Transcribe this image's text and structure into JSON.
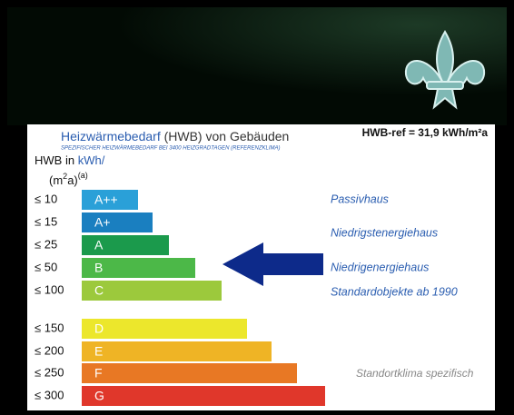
{
  "header": {
    "title_main": "Heizwärmebedarf",
    "title_rest": "(HWB) von Gebäuden",
    "subtitle": "SPEZIFISCHER HEIZWÄRMEBEDARF BEI 3400 HEIZGRADTAGEN (REFERENZKLIMA)",
    "reference": "HWB-ref = 31,9 kWh/m²a"
  },
  "unit": {
    "prefix": "HWB in",
    "unit": "kWh/",
    "open": "(m",
    "power": "2",
    "close": "a)",
    "note": "(a)"
  },
  "classes": [
    {
      "limit": "≤ 10",
      "label": "A++",
      "color": "#2aa0d8"
    },
    {
      "limit": "≤ 15",
      "label": "A+",
      "color": "#1a7fc0"
    },
    {
      "limit": "≤ 25",
      "label": "A",
      "color": "#1b9a4c"
    },
    {
      "limit": "≤ 50",
      "label": "B",
      "color": "#4cb848"
    },
    {
      "limit": "≤ 100",
      "label": "C",
      "color": "#9cc93c"
    },
    {
      "limit": "≤ 150",
      "label": "D",
      "color": "#ece72c"
    },
    {
      "limit": "≤ 200",
      "label": "E",
      "color": "#efb425"
    },
    {
      "limit": "≤ 250",
      "label": "F",
      "color": "#e87824"
    },
    {
      "limit": "≤ 300",
      "label": "G",
      "color": "#e0372b"
    }
  ],
  "descriptions": [
    "Passivhaus",
    "Niedrigstenergiehaus",
    "Niedrigenergiehaus",
    "Standardobjekte ab 1990"
  ],
  "footnote": "Standortklima spezifisch"
}
